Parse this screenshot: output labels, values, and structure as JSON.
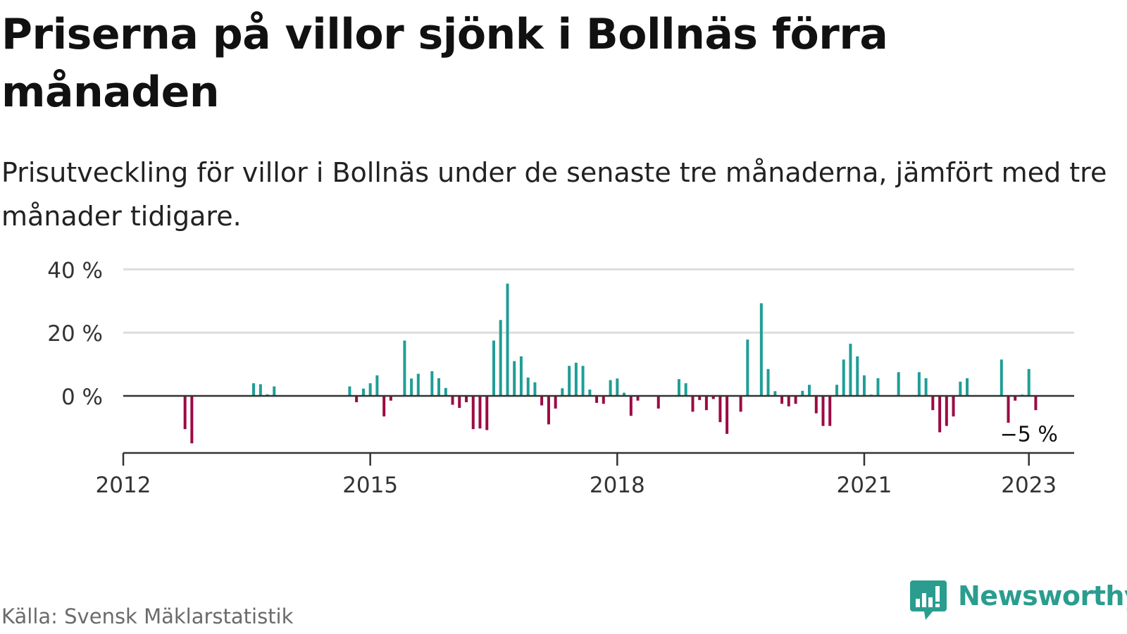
{
  "title": "Priserna på villor sjönk i Bollnäs förra månaden",
  "subtitle": "Prisutveckling för villor i Bollnäs under de senaste tre månaderna, jämfört med tre månader tidigare.",
  "source": "Källa: Svensk Mäklarstatistik",
  "brand": {
    "name": "Newsworthy",
    "icon": "newsworthy-logo-icon"
  },
  "colors": {
    "positive": "#1f9e96",
    "negative": "#9c0a45",
    "grid": "#dddddd",
    "axis": "#333333"
  },
  "chart_data": {
    "type": "bar",
    "x_unit": "year",
    "xlim": [
      2012,
      2023.55
    ],
    "ylim": [
      -18,
      40
    ],
    "y_ticks": [
      {
        "value": 40,
        "label": "40 %"
      },
      {
        "value": 20,
        "label": "20 %"
      },
      {
        "value": 0,
        "label": "0 %"
      }
    ],
    "x_ticks": [
      {
        "value": 2012,
        "label": "2012"
      },
      {
        "value": 2015,
        "label": "2015"
      },
      {
        "value": 2018,
        "label": "2018"
      },
      {
        "value": 2021,
        "label": "2021"
      },
      {
        "value": 2023,
        "label": "2023"
      }
    ],
    "grid": true,
    "annotation": {
      "text": "−5 %",
      "x": 2023.0,
      "y": -5
    },
    "points": [
      {
        "x": 2012.75,
        "y": -10.5
      },
      {
        "x": 2012.833,
        "y": -15
      },
      {
        "x": 2013.583,
        "y": 4
      },
      {
        "x": 2013.667,
        "y": 3.7
      },
      {
        "x": 2013.75,
        "y": 0.5
      },
      {
        "x": 2013.833,
        "y": 3
      },
      {
        "x": 2014.75,
        "y": 3
      },
      {
        "x": 2014.833,
        "y": -2
      },
      {
        "x": 2014.917,
        "y": 2.3
      },
      {
        "x": 2015.0,
        "y": 4
      },
      {
        "x": 2015.083,
        "y": 6.5
      },
      {
        "x": 2015.167,
        "y": -6.5
      },
      {
        "x": 2015.25,
        "y": -1.5
      },
      {
        "x": 2015.417,
        "y": 17.5
      },
      {
        "x": 2015.5,
        "y": 5.5
      },
      {
        "x": 2015.583,
        "y": 7
      },
      {
        "x": 2015.75,
        "y": 7.8
      },
      {
        "x": 2015.833,
        "y": 5.6
      },
      {
        "x": 2015.917,
        "y": 2.5
      },
      {
        "x": 2016.0,
        "y": -2.8
      },
      {
        "x": 2016.083,
        "y": -3.8
      },
      {
        "x": 2016.167,
        "y": -2
      },
      {
        "x": 2016.25,
        "y": -10.5
      },
      {
        "x": 2016.333,
        "y": -10.3
      },
      {
        "x": 2016.417,
        "y": -10.8
      },
      {
        "x": 2016.5,
        "y": 17.5
      },
      {
        "x": 2016.583,
        "y": 24
      },
      {
        "x": 2016.667,
        "y": 35.5
      },
      {
        "x": 2016.75,
        "y": 11
      },
      {
        "x": 2016.833,
        "y": 12.5
      },
      {
        "x": 2016.917,
        "y": 5.8
      },
      {
        "x": 2017.0,
        "y": 4.3
      },
      {
        "x": 2017.083,
        "y": -3
      },
      {
        "x": 2017.167,
        "y": -9
      },
      {
        "x": 2017.25,
        "y": -4
      },
      {
        "x": 2017.333,
        "y": 2.4
      },
      {
        "x": 2017.417,
        "y": 9.5
      },
      {
        "x": 2017.5,
        "y": 10.5
      },
      {
        "x": 2017.583,
        "y": 9.5
      },
      {
        "x": 2017.667,
        "y": 2
      },
      {
        "x": 2017.75,
        "y": -2.2
      },
      {
        "x": 2017.833,
        "y": -2.5
      },
      {
        "x": 2017.917,
        "y": 5
      },
      {
        "x": 2018.0,
        "y": 5.5
      },
      {
        "x": 2018.083,
        "y": 1
      },
      {
        "x": 2018.167,
        "y": -6.3
      },
      {
        "x": 2018.25,
        "y": -1.5
      },
      {
        "x": 2018.5,
        "y": -4
      },
      {
        "x": 2018.75,
        "y": 5.3
      },
      {
        "x": 2018.833,
        "y": 4
      },
      {
        "x": 2018.917,
        "y": -5
      },
      {
        "x": 2019.0,
        "y": -1.3
      },
      {
        "x": 2019.083,
        "y": -4.5
      },
      {
        "x": 2019.167,
        "y": -1
      },
      {
        "x": 2019.25,
        "y": -8.3
      },
      {
        "x": 2019.333,
        "y": -12
      },
      {
        "x": 2019.5,
        "y": -5
      },
      {
        "x": 2019.583,
        "y": 17.8
      },
      {
        "x": 2019.75,
        "y": 29.3
      },
      {
        "x": 2019.833,
        "y": 8.5
      },
      {
        "x": 2019.917,
        "y": 1.5
      },
      {
        "x": 2020.0,
        "y": -2.5
      },
      {
        "x": 2020.083,
        "y": -3.3
      },
      {
        "x": 2020.167,
        "y": -2.5
      },
      {
        "x": 2020.25,
        "y": 1.6
      },
      {
        "x": 2020.333,
        "y": 3.5
      },
      {
        "x": 2020.417,
        "y": -5.5
      },
      {
        "x": 2020.5,
        "y": -9.5
      },
      {
        "x": 2020.583,
        "y": -9.5
      },
      {
        "x": 2020.667,
        "y": 3.5
      },
      {
        "x": 2020.75,
        "y": 11.5
      },
      {
        "x": 2020.833,
        "y": 16.5
      },
      {
        "x": 2020.917,
        "y": 12.5
      },
      {
        "x": 2021.0,
        "y": 6.5
      },
      {
        "x": 2021.083,
        "y": 0.4
      },
      {
        "x": 2021.167,
        "y": 5.6
      },
      {
        "x": 2021.417,
        "y": 7.5
      },
      {
        "x": 2021.667,
        "y": 7.5
      },
      {
        "x": 2021.75,
        "y": 5.6
      },
      {
        "x": 2021.833,
        "y": -4.5
      },
      {
        "x": 2021.917,
        "y": -11.5
      },
      {
        "x": 2022.0,
        "y": -9.5
      },
      {
        "x": 2022.083,
        "y": -6.5
      },
      {
        "x": 2022.167,
        "y": 4.5
      },
      {
        "x": 2022.25,
        "y": 5.6
      },
      {
        "x": 2022.667,
        "y": 11.5
      },
      {
        "x": 2022.75,
        "y": -8.5
      },
      {
        "x": 2022.833,
        "y": -1.5
      },
      {
        "x": 2022.917,
        "y": 0.4
      },
      {
        "x": 2023.0,
        "y": 8.5
      },
      {
        "x": 2023.083,
        "y": -4.5
      }
    ]
  }
}
